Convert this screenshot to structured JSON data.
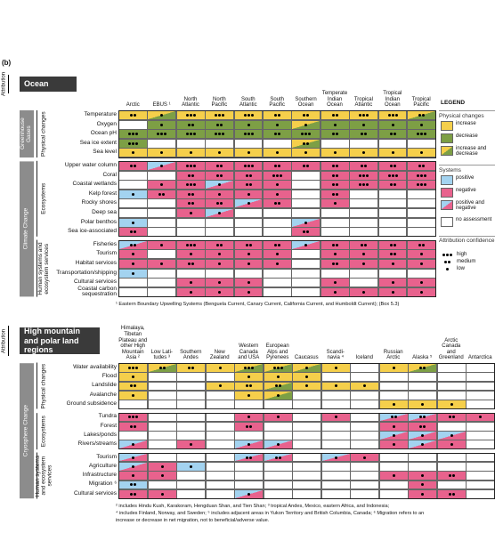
{
  "label": "(b)",
  "attribution": "Attribution",
  "legend": {
    "title": "LEGEND",
    "physical": {
      "title": "Physical changes",
      "items": [
        {
          "label": "increase",
          "code": "i"
        },
        {
          "label": "decrease",
          "code": "d"
        },
        {
          "label": "increase and decrease",
          "code": "x"
        }
      ]
    },
    "systems": {
      "title": "Systems",
      "items": [
        {
          "label": "positive",
          "code": "p"
        },
        {
          "label": "negative",
          "code": "n"
        },
        {
          "label": "positive and negative",
          "code": "m"
        },
        {
          "label": "no assessment",
          "code": ""
        }
      ]
    },
    "confidence": {
      "title": "Attribution confidence",
      "items": [
        {
          "label": "high",
          "dots": 3
        },
        {
          "label": "medium",
          "dots": 2
        },
        {
          "label": "low",
          "dots": 1
        }
      ]
    }
  },
  "ocean": {
    "title": "Ocean",
    "columns": [
      "Arctic",
      "EBUS ¹",
      "North Atlantic",
      "North Pacific",
      "South Atlantic",
      "South Pacific",
      "Southern Ocean",
      "Temperate Indian Ocean",
      "Tropical Atlantic",
      "Tropical Indian Ocean",
      "Tropical Pacific"
    ],
    "bands": [
      {
        "label": "Greenhouse Gases",
        "groups": [
          {
            "label": "Physical changes",
            "rows": [
              {
                "name": "Temperature",
                "cells": [
                  "i2",
                  "x1",
                  "i3",
                  "i3",
                  "i3",
                  "i2",
                  "i2",
                  "i2",
                  "i3",
                  "i3",
                  "x2"
                ]
              },
              {
                "name": "Oxygen",
                "cells": [
                  "",
                  "d1",
                  "d2",
                  "d2",
                  "d1",
                  "d1",
                  "x1",
                  "d1",
                  "d1",
                  "d1",
                  "d1"
                ]
              },
              {
                "name": "Ocean pH",
                "cells": [
                  "d3",
                  "d3",
                  "d3",
                  "d3",
                  "d3",
                  "d2",
                  "d3",
                  "d2",
                  "d2",
                  "d2",
                  "d3"
                ]
              },
              {
                "name": "Sea ice extent",
                "cells": [
                  "d3",
                  "",
                  "",
                  "",
                  "",
                  "",
                  "x2",
                  "",
                  "",
                  "",
                  ""
                ]
              },
              {
                "name": "Sea level",
                "cells": [
                  "i1",
                  "i1",
                  "i1",
                  "i1",
                  "i1",
                  "i1",
                  "i1",
                  "i1",
                  "i1",
                  "i1",
                  "i1"
                ]
              }
            ]
          }
        ]
      },
      {
        "label": "Climate Change",
        "groups": [
          {
            "label": "Ecosystems",
            "rows": [
              {
                "name": "Upper water column",
                "cells": [
                  "n2",
                  "m1",
                  "n3",
                  "n2",
                  "n3",
                  "n2",
                  "n2",
                  "n2",
                  "n2",
                  "n2",
                  "n2"
                ]
              },
              {
                "name": "Coral",
                "cells": [
                  "",
                  "",
                  "n2",
                  "n2",
                  "n2",
                  "n3",
                  "",
                  "n2",
                  "n3",
                  "n3",
                  "n3"
                ]
              },
              {
                "name": "Coastal wetlands",
                "cells": [
                  "",
                  "n1",
                  "n3",
                  "m1",
                  "n2",
                  "n1",
                  "",
                  "n2",
                  "n3",
                  "n2",
                  "n3"
                ]
              },
              {
                "name": "Kelp forest",
                "cells": [
                  "p1",
                  "n2",
                  "n2",
                  "n1",
                  "n1",
                  "n1",
                  "",
                  "n2",
                  "",
                  "",
                  ""
                ]
              },
              {
                "name": "Rocky shores",
                "cells": [
                  "",
                  "",
                  "n2",
                  "n2",
                  "m1",
                  "n2",
                  "",
                  "n1",
                  "",
                  "",
                  ""
                ]
              },
              {
                "name": "Deep sea",
                "cells": [
                  "",
                  "",
                  "n1",
                  "m1",
                  "",
                  "",
                  "",
                  "",
                  "",
                  "",
                  ""
                ]
              },
              {
                "name": "Polar benthos",
                "cells": [
                  "p1",
                  "",
                  "",
                  "",
                  "",
                  "",
                  "m1",
                  "",
                  "",
                  "",
                  ""
                ]
              },
              {
                "name": "Sea ice-associated",
                "cells": [
                  "n2",
                  "",
                  "",
                  "",
                  "",
                  "",
                  "n2",
                  "",
                  "",
                  "",
                  ""
                ]
              }
            ]
          },
          {
            "label": "Human systems and ecosystem services",
            "rows": [
              {
                "name": "Fisheries",
                "cells": [
                  "m2",
                  "n1",
                  "n3",
                  "n2",
                  "n2",
                  "n2",
                  "m1",
                  "n2",
                  "n2",
                  "n2",
                  "n2"
                ]
              },
              {
                "name": "Tourism",
                "cells": [
                  "n1",
                  "",
                  "n1",
                  "n1",
                  "n1",
                  "n1",
                  "",
                  "n1",
                  "n1",
                  "n2",
                  "n1"
                ]
              },
              {
                "name": "Habitat services",
                "cells": [
                  "n1",
                  "n1",
                  "n2",
                  "n1",
                  "n1",
                  "n1",
                  "",
                  "n2",
                  "n1",
                  "n1",
                  "n1"
                ]
              },
              {
                "name": "Transportation/shipping",
                "cells": [
                  "p1",
                  "",
                  "",
                  "",
                  "",
                  "",
                  "",
                  "",
                  "",
                  "",
                  ""
                ]
              },
              {
                "name": "Cultural services",
                "cells": [
                  "",
                  "",
                  "n1",
                  "n1",
                  "n1",
                  "",
                  "",
                  "n1",
                  "",
                  "n1",
                  "n1"
                ]
              },
              {
                "name": "Coastal carbon sequestration",
                "cells": [
                  "",
                  "",
                  "n1",
                  "n1",
                  "n1",
                  "",
                  "",
                  "n1",
                  "n1",
                  "n1",
                  "n1"
                ]
              }
            ]
          }
        ]
      }
    ],
    "footnotes": [
      "¹ Eastern Boundary Upwelling Systems (Benguela Current, Canary Current, California Current, and Humboldt Current); (Box 5.3)"
    ]
  },
  "land": {
    "title": "High mountain and polar land regions",
    "columns": [
      "Himalaya, Tibetan Plateau and other High Mountain Asia ²",
      "Low Lati- tudes ³",
      "Southern Andes",
      "New Zealand",
      "Western Canada and USA",
      "European Alps and Pyrenees",
      "Caucasus",
      "Scandi- navia ⁴",
      "Iceland",
      "Russian Arctic",
      "Alaska ⁵",
      "Arctic Canada and Greenland",
      "Antarctica"
    ],
    "bands": [
      {
        "label": "Cryosphere Change",
        "groups": [
          {
            "label": "Physical changes",
            "rows": [
              {
                "name": "Water availability",
                "cells": [
                  "i3",
                  "x2",
                  "i2",
                  "i1",
                  "x3",
                  "x3",
                  "x1",
                  "i1",
                  "",
                  "i1",
                  "x2",
                  "",
                  ""
                ]
              },
              {
                "name": "Flood",
                "cells": [
                  "i1",
                  "",
                  "",
                  "",
                  "i1",
                  "i1",
                  "i1",
                  "",
                  "",
                  "",
                  "",
                  "",
                  ""
                ]
              },
              {
                "name": "Landslide",
                "cells": [
                  "i2",
                  "",
                  "",
                  "i1",
                  "i2",
                  "x2",
                  "i1",
                  "i1",
                  "i1",
                  "",
                  "",
                  "",
                  ""
                ]
              },
              {
                "name": "Avalanche",
                "cells": [
                  "i1",
                  "",
                  "",
                  "",
                  "i1",
                  "x1",
                  "",
                  "",
                  "",
                  "",
                  "",
                  "",
                  ""
                ]
              },
              {
                "name": "Ground subsidence",
                "cells": [
                  "",
                  "",
                  "",
                  "",
                  "",
                  "",
                  "",
                  "",
                  "",
                  "i1",
                  "i1",
                  "i1",
                  ""
                ]
              }
            ]
          },
          {
            "label": "Ecosystems",
            "rows": [
              {
                "name": "Tundra",
                "cells": [
                  "n3",
                  "",
                  "",
                  "",
                  "n1",
                  "n1",
                  "",
                  "n1",
                  "",
                  "m2",
                  "m2",
                  "n2",
                  "n1"
                ]
              },
              {
                "name": "Forest",
                "cells": [
                  "n2",
                  "",
                  "",
                  "",
                  "n2",
                  "",
                  "",
                  "",
                  "",
                  "n1",
                  "n2",
                  "",
                  ""
                ]
              },
              {
                "name": "Lakes/ponds",
                "cells": [
                  "",
                  "",
                  "",
                  "",
                  "",
                  "",
                  "",
                  "",
                  "",
                  "m1",
                  "m1",
                  "m1",
                  ""
                ]
              },
              {
                "name": "Rivers/streams",
                "cells": [
                  "m1",
                  "",
                  "n1",
                  "",
                  "m1",
                  "m1",
                  "",
                  "",
                  "",
                  "n1",
                  "m1",
                  "n1",
                  ""
                ]
              }
            ]
          },
          {
            "label": "Human systems and ecosystem services",
            "rows": [
              {
                "name": "Tourism",
                "cells": [
                  "m1",
                  "",
                  "",
                  "",
                  "m2",
                  "m2",
                  "",
                  "m1",
                  "n1",
                  "",
                  "",
                  "",
                  ""
                ]
              },
              {
                "name": "Agriculture",
                "cells": [
                  "m1",
                  "n1",
                  "p1",
                  "",
                  "",
                  "",
                  "",
                  "",
                  "",
                  "",
                  "",
                  "",
                  ""
                ]
              },
              {
                "name": "Infrastructure",
                "cells": [
                  "n1",
                  "n1",
                  "",
                  "",
                  "",
                  "",
                  "",
                  "",
                  "",
                  "n1",
                  "n1",
                  "n2",
                  ""
                ]
              },
              {
                "name": "Migration ⁶",
                "cells": [
                  "p2",
                  "",
                  "",
                  "",
                  "",
                  "",
                  "",
                  "",
                  "",
                  "",
                  "n1",
                  "",
                  ""
                ]
              },
              {
                "name": "Cultural services",
                "cells": [
                  "n2",
                  "n1",
                  "",
                  "",
                  "m1",
                  "",
                  "",
                  "",
                  "",
                  "",
                  "n1",
                  "n2",
                  ""
                ]
              }
            ]
          }
        ]
      }
    ],
    "footnotes": [
      "² includes Hindu Kush, Karakoram, Hengduan Shan, and Tien Shan; ³ tropical Andes, Mexico, eastern Africa, and Indonesia;",
      "⁴ includes Finland, Norway, and Sweden; ⁵ includes adjacent areas in Yukon Territory and British Columbia, Canada; ⁶ Migration refers to an",
      "increase or decrease in net migration, not to beneficial/adverse value."
    ]
  }
}
